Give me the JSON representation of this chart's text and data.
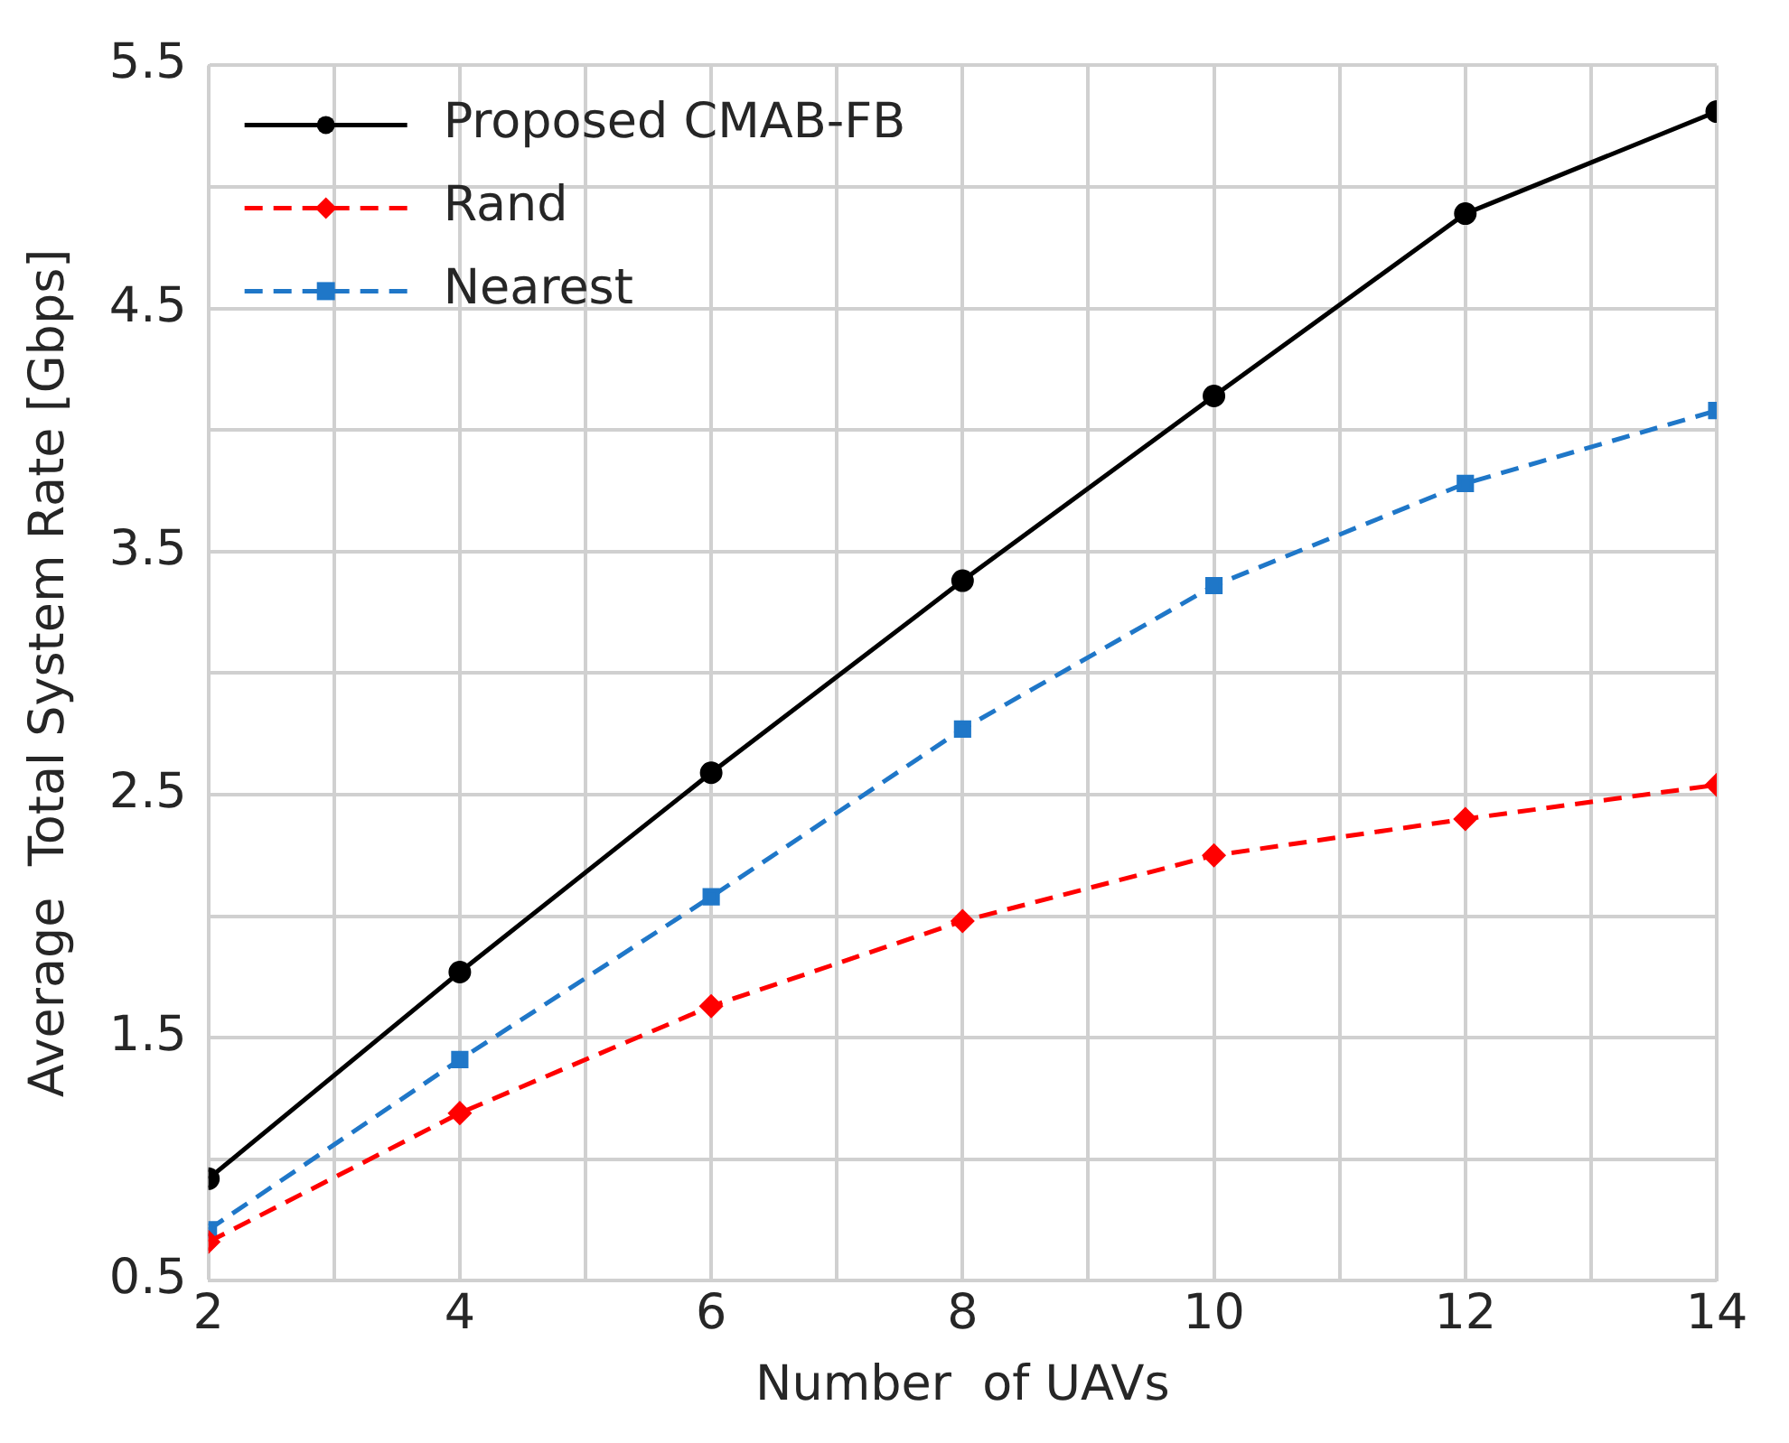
{
  "chart_data": {
    "type": "line",
    "xlabel": "Number  of UAVs",
    "ylabel": "Average  Total System Rate [Gbps]",
    "x": [
      2,
      4,
      6,
      8,
      10,
      12,
      14
    ],
    "series": [
      {
        "name": "Proposed CMAB-FB",
        "color": "#000000",
        "marker": "circle",
        "line_style": "solid",
        "values": [
          0.92,
          1.77,
          2.59,
          3.38,
          4.14,
          4.89,
          5.31
        ]
      },
      {
        "name": "Rand",
        "color": "#ff0000",
        "marker": "diamond",
        "line_style": "dashed",
        "values": [
          0.66,
          1.19,
          1.63,
          1.98,
          2.25,
          2.4,
          2.54
        ]
      },
      {
        "name": "Nearest",
        "color": "#1f77c8",
        "marker": "square",
        "line_style": "dashed",
        "values": [
          0.71,
          1.41,
          2.08,
          2.77,
          3.36,
          3.78,
          4.08
        ]
      }
    ],
    "xlim": [
      2,
      14
    ],
    "xticks": [
      2,
      {
        "value": 3,
        "label": null
      },
      4,
      {
        "value": 5,
        "label": null
      },
      6,
      {
        "value": 7,
        "label": null
      },
      8,
      {
        "value": 9,
        "label": null
      },
      10,
      {
        "value": 11,
        "label": null
      },
      12,
      {
        "value": 13,
        "label": null
      },
      14
    ],
    "ylim": [
      0.5,
      5.5
    ],
    "yticks": [
      0.5,
      {
        "value": 1,
        "label": null
      },
      1.5,
      {
        "value": 2,
        "label": null
      },
      2.5,
      {
        "value": 3,
        "label": null
      },
      3.5,
      {
        "value": 4,
        "label": null
      },
      4.5,
      {
        "value": 5,
        "label": null
      },
      5.5
    ],
    "grid": true,
    "legend": "top left"
  }
}
